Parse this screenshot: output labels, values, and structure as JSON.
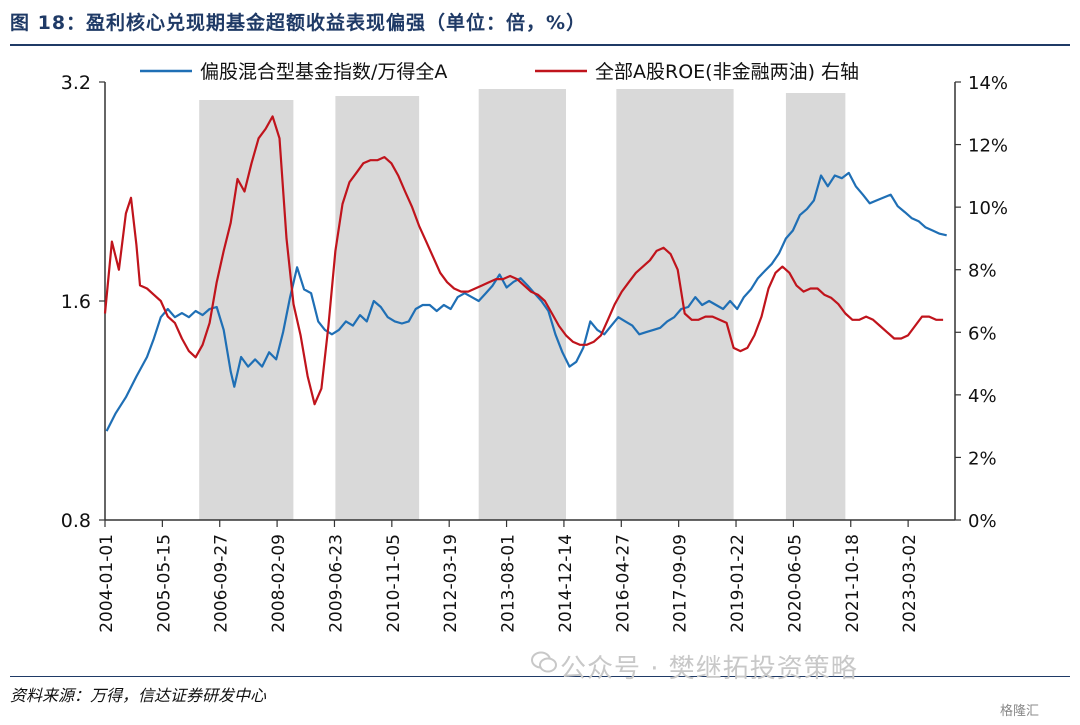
{
  "header": {
    "title": "图 18：盈利核心兑现期基金超额收益表现偏强（单位：倍，%）"
  },
  "footer": {
    "source": "资料来源：万得，信达证券研发中心",
    "watermark": "公众号 · 樊继拓投资策略",
    "corner_logo": "格隆汇"
  },
  "colors": {
    "blue_series": "#1f6fb5",
    "red_series": "#c0141c",
    "shade": "#d9d9d9",
    "axis": "#333333"
  },
  "chart_data": {
    "type": "line",
    "title": "",
    "xlabel": "",
    "ylabel": "",
    "legend_position": "top",
    "grid": false,
    "x_ticks": [
      "2004-01-01",
      "2005-05-15",
      "2006-09-27",
      "2008-02-09",
      "2009-06-23",
      "2010-11-05",
      "2012-03-19",
      "2013-08-01",
      "2014-12-14",
      "2016-04-27",
      "2017-09-09",
      "2019-01-22",
      "2020-06-05",
      "2021-10-18",
      "2023-03-02"
    ],
    "x_range": [
      "2004-01-01",
      "2024-03-01"
    ],
    "y_left": {
      "ticks": [
        "0.8",
        "1.6",
        "3.2"
      ],
      "log_scale": true,
      "range": [
        0.8,
        3.2
      ]
    },
    "y_right": {
      "ticks": [
        "0%",
        "2%",
        "4%",
        "6%",
        "8%",
        "10%",
        "12%",
        "14%"
      ],
      "range": [
        0,
        14
      ]
    },
    "shaded_periods": [
      [
        "2006-04-01",
        "2008-06-30"
      ],
      [
        "2009-07-01",
        "2011-07-01"
      ],
      [
        "2012-12-01",
        "2015-01-01"
      ],
      [
        "2016-03-15",
        "2019-01-01"
      ],
      [
        "2020-04-01",
        "2021-09-01"
      ]
    ],
    "series": [
      {
        "name": "偏股混合型基金指数/万得全A",
        "axis": "left",
        "points": [
          [
            "2004-01-15",
            1.06
          ],
          [
            "2004-04-01",
            1.12
          ],
          [
            "2004-07-01",
            1.18
          ],
          [
            "2004-10-01",
            1.26
          ],
          [
            "2005-01-01",
            1.34
          ],
          [
            "2005-03-01",
            1.42
          ],
          [
            "2005-05-01",
            1.52
          ],
          [
            "2005-07-01",
            1.56
          ],
          [
            "2005-09-01",
            1.52
          ],
          [
            "2005-11-01",
            1.54
          ],
          [
            "2006-01-01",
            1.52
          ],
          [
            "2006-03-01",
            1.55
          ],
          [
            "2006-05-01",
            1.53
          ],
          [
            "2006-07-01",
            1.56
          ],
          [
            "2006-09-01",
            1.57
          ],
          [
            "2006-11-01",
            1.46
          ],
          [
            "2007-01-01",
            1.28
          ],
          [
            "2007-02-01",
            1.22
          ],
          [
            "2007-04-01",
            1.34
          ],
          [
            "2007-06-01",
            1.3
          ],
          [
            "2007-08-01",
            1.33
          ],
          [
            "2007-10-01",
            1.3
          ],
          [
            "2007-12-01",
            1.36
          ],
          [
            "2008-02-01",
            1.33
          ],
          [
            "2008-04-01",
            1.45
          ],
          [
            "2008-06-01",
            1.62
          ],
          [
            "2008-08-01",
            1.78
          ],
          [
            "2008-10-01",
            1.66
          ],
          [
            "2008-12-01",
            1.64
          ],
          [
            "2009-02-01",
            1.5
          ],
          [
            "2009-04-01",
            1.46
          ],
          [
            "2009-06-01",
            1.44
          ],
          [
            "2009-08-01",
            1.46
          ],
          [
            "2009-10-01",
            1.5
          ],
          [
            "2009-12-01",
            1.48
          ],
          [
            "2010-02-01",
            1.53
          ],
          [
            "2010-04-01",
            1.5
          ],
          [
            "2010-06-01",
            1.6
          ],
          [
            "2010-08-01",
            1.57
          ],
          [
            "2010-10-01",
            1.52
          ],
          [
            "2010-12-01",
            1.5
          ],
          [
            "2011-02-01",
            1.49
          ],
          [
            "2011-04-01",
            1.5
          ],
          [
            "2011-06-01",
            1.56
          ],
          [
            "2011-08-01",
            1.58
          ],
          [
            "2011-10-01",
            1.58
          ],
          [
            "2011-12-01",
            1.55
          ],
          [
            "2012-02-01",
            1.58
          ],
          [
            "2012-04-01",
            1.56
          ],
          [
            "2012-06-01",
            1.62
          ],
          [
            "2012-08-01",
            1.64
          ],
          [
            "2012-10-01",
            1.62
          ],
          [
            "2012-12-01",
            1.6
          ],
          [
            "2013-02-01",
            1.64
          ],
          [
            "2013-04-01",
            1.68
          ],
          [
            "2013-06-01",
            1.74
          ],
          [
            "2013-08-01",
            1.67
          ],
          [
            "2013-10-01",
            1.7
          ],
          [
            "2013-12-01",
            1.72
          ],
          [
            "2014-02-01",
            1.68
          ],
          [
            "2014-04-01",
            1.64
          ],
          [
            "2014-06-01",
            1.6
          ],
          [
            "2014-08-01",
            1.55
          ],
          [
            "2014-10-01",
            1.44
          ],
          [
            "2014-12-01",
            1.36
          ],
          [
            "2015-02-01",
            1.3
          ],
          [
            "2015-04-01",
            1.32
          ],
          [
            "2015-06-01",
            1.38
          ],
          [
            "2015-08-01",
            1.5
          ],
          [
            "2015-10-01",
            1.46
          ],
          [
            "2015-12-01",
            1.44
          ],
          [
            "2016-02-01",
            1.48
          ],
          [
            "2016-04-01",
            1.52
          ],
          [
            "2016-06-01",
            1.5
          ],
          [
            "2016-08-01",
            1.48
          ],
          [
            "2016-10-01",
            1.44
          ],
          [
            "2016-12-01",
            1.45
          ],
          [
            "2017-02-01",
            1.46
          ],
          [
            "2017-04-01",
            1.47
          ],
          [
            "2017-06-01",
            1.5
          ],
          [
            "2017-08-01",
            1.52
          ],
          [
            "2017-10-01",
            1.56
          ],
          [
            "2017-12-01",
            1.57
          ],
          [
            "2018-02-01",
            1.62
          ],
          [
            "2018-04-01",
            1.58
          ],
          [
            "2018-06-01",
            1.6
          ],
          [
            "2018-08-01",
            1.58
          ],
          [
            "2018-10-01",
            1.56
          ],
          [
            "2018-12-01",
            1.6
          ],
          [
            "2019-02-01",
            1.56
          ],
          [
            "2019-04-01",
            1.62
          ],
          [
            "2019-06-01",
            1.66
          ],
          [
            "2019-08-01",
            1.72
          ],
          [
            "2019-10-01",
            1.76
          ],
          [
            "2019-12-01",
            1.8
          ],
          [
            "2020-02-01",
            1.86
          ],
          [
            "2020-04-01",
            1.95
          ],
          [
            "2020-06-01",
            2.0
          ],
          [
            "2020-08-01",
            2.1
          ],
          [
            "2020-10-01",
            2.14
          ],
          [
            "2020-12-01",
            2.2
          ],
          [
            "2021-02-01",
            2.38
          ],
          [
            "2021-04-01",
            2.3
          ],
          [
            "2021-06-01",
            2.38
          ],
          [
            "2021-08-01",
            2.36
          ],
          [
            "2021-10-01",
            2.4
          ],
          [
            "2021-12-01",
            2.3
          ],
          [
            "2022-02-01",
            2.24
          ],
          [
            "2022-04-01",
            2.18
          ],
          [
            "2022-06-01",
            2.2
          ],
          [
            "2022-08-01",
            2.22
          ],
          [
            "2022-10-01",
            2.24
          ],
          [
            "2022-12-01",
            2.16
          ],
          [
            "2023-02-01",
            2.12
          ],
          [
            "2023-04-01",
            2.08
          ],
          [
            "2023-06-01",
            2.06
          ],
          [
            "2023-08-01",
            2.02
          ],
          [
            "2023-10-01",
            2.0
          ],
          [
            "2023-12-01",
            1.98
          ],
          [
            "2024-02-01",
            1.97
          ]
        ]
      },
      {
        "name": "全部A股ROE(非金融两油) 右轴",
        "axis": "right",
        "points": [
          [
            "2004-01-01",
            6.6
          ],
          [
            "2004-03-01",
            8.9
          ],
          [
            "2004-05-01",
            8.0
          ],
          [
            "2004-07-01",
            9.8
          ],
          [
            "2004-08-15",
            10.3
          ],
          [
            "2004-10-01",
            8.8
          ],
          [
            "2004-11-01",
            7.5
          ],
          [
            "2005-01-01",
            7.4
          ],
          [
            "2005-03-01",
            7.2
          ],
          [
            "2005-05-01",
            7.0
          ],
          [
            "2005-07-01",
            6.5
          ],
          [
            "2005-09-01",
            6.3
          ],
          [
            "2005-11-01",
            5.8
          ],
          [
            "2006-01-01",
            5.4
          ],
          [
            "2006-03-01",
            5.2
          ],
          [
            "2006-05-01",
            5.6
          ],
          [
            "2006-07-01",
            6.3
          ],
          [
            "2006-09-01",
            7.6
          ],
          [
            "2006-11-01",
            8.6
          ],
          [
            "2007-01-01",
            9.5
          ],
          [
            "2007-03-01",
            10.9
          ],
          [
            "2007-05-01",
            10.5
          ],
          [
            "2007-07-01",
            11.4
          ],
          [
            "2007-09-01",
            12.2
          ],
          [
            "2007-11-01",
            12.5
          ],
          [
            "2008-01-01",
            12.9
          ],
          [
            "2008-03-01",
            12.2
          ],
          [
            "2008-05-01",
            9.0
          ],
          [
            "2008-07-01",
            6.9
          ],
          [
            "2008-09-01",
            5.9
          ],
          [
            "2008-11-01",
            4.6
          ],
          [
            "2009-01-01",
            3.7
          ],
          [
            "2009-03-01",
            4.2
          ],
          [
            "2009-05-01",
            6.2
          ],
          [
            "2009-07-01",
            8.6
          ],
          [
            "2009-09-01",
            10.1
          ],
          [
            "2009-11-01",
            10.8
          ],
          [
            "2010-01-01",
            11.1
          ],
          [
            "2010-03-01",
            11.4
          ],
          [
            "2010-05-01",
            11.5
          ],
          [
            "2010-07-01",
            11.5
          ],
          [
            "2010-09-01",
            11.6
          ],
          [
            "2010-11-01",
            11.4
          ],
          [
            "2011-01-01",
            11.0
          ],
          [
            "2011-03-01",
            10.5
          ],
          [
            "2011-05-01",
            10.0
          ],
          [
            "2011-07-01",
            9.4
          ],
          [
            "2011-09-01",
            8.9
          ],
          [
            "2011-11-01",
            8.4
          ],
          [
            "2012-01-01",
            7.9
          ],
          [
            "2012-03-01",
            7.6
          ],
          [
            "2012-05-01",
            7.4
          ],
          [
            "2012-07-01",
            7.3
          ],
          [
            "2012-09-01",
            7.3
          ],
          [
            "2012-11-01",
            7.4
          ],
          [
            "2013-01-01",
            7.5
          ],
          [
            "2013-03-01",
            7.6
          ],
          [
            "2013-05-01",
            7.7
          ],
          [
            "2013-07-01",
            7.7
          ],
          [
            "2013-09-01",
            7.8
          ],
          [
            "2013-11-01",
            7.7
          ],
          [
            "2014-01-01",
            7.5
          ],
          [
            "2014-03-01",
            7.3
          ],
          [
            "2014-05-01",
            7.2
          ],
          [
            "2014-07-01",
            7.0
          ],
          [
            "2014-09-01",
            6.6
          ],
          [
            "2014-11-01",
            6.2
          ],
          [
            "2015-01-01",
            5.9
          ],
          [
            "2015-03-01",
            5.7
          ],
          [
            "2015-05-01",
            5.6
          ],
          [
            "2015-07-01",
            5.6
          ],
          [
            "2015-09-01",
            5.7
          ],
          [
            "2015-11-01",
            5.9
          ],
          [
            "2016-01-01",
            6.4
          ],
          [
            "2016-03-01",
            6.9
          ],
          [
            "2016-05-01",
            7.3
          ],
          [
            "2016-07-01",
            7.6
          ],
          [
            "2016-09-01",
            7.9
          ],
          [
            "2016-11-01",
            8.1
          ],
          [
            "2017-01-01",
            8.3
          ],
          [
            "2017-03-01",
            8.6
          ],
          [
            "2017-05-01",
            8.7
          ],
          [
            "2017-07-01",
            8.5
          ],
          [
            "2017-09-01",
            8.0
          ],
          [
            "2017-11-01",
            6.6
          ],
          [
            "2018-01-01",
            6.4
          ],
          [
            "2018-03-01",
            6.4
          ],
          [
            "2018-05-01",
            6.5
          ],
          [
            "2018-07-01",
            6.5
          ],
          [
            "2018-09-01",
            6.4
          ],
          [
            "2018-11-01",
            6.3
          ],
          [
            "2019-01-01",
            5.5
          ],
          [
            "2019-03-01",
            5.4
          ],
          [
            "2019-05-01",
            5.5
          ],
          [
            "2019-07-01",
            5.9
          ],
          [
            "2019-09-01",
            6.5
          ],
          [
            "2019-11-01",
            7.4
          ],
          [
            "2020-01-01",
            7.9
          ],
          [
            "2020-03-01",
            8.1
          ],
          [
            "2020-05-01",
            7.9
          ],
          [
            "2020-07-01",
            7.5
          ],
          [
            "2020-09-01",
            7.3
          ],
          [
            "2020-11-01",
            7.4
          ],
          [
            "2021-01-01",
            7.4
          ],
          [
            "2021-03-01",
            7.2
          ],
          [
            "2021-05-01",
            7.1
          ],
          [
            "2021-07-01",
            6.9
          ],
          [
            "2021-09-01",
            6.6
          ],
          [
            "2021-11-01",
            6.4
          ],
          [
            "2022-01-01",
            6.4
          ],
          [
            "2022-03-01",
            6.5
          ],
          [
            "2022-05-01",
            6.4
          ],
          [
            "2022-07-01",
            6.2
          ],
          [
            "2022-09-01",
            6.0
          ],
          [
            "2022-11-01",
            5.8
          ],
          [
            "2023-01-01",
            5.8
          ],
          [
            "2023-03-01",
            5.9
          ],
          [
            "2023-05-01",
            6.2
          ],
          [
            "2023-07-01",
            6.5
          ],
          [
            "2023-09-01",
            6.5
          ],
          [
            "2023-11-01",
            6.4
          ],
          [
            "2024-01-01",
            6.4
          ]
        ]
      }
    ]
  }
}
